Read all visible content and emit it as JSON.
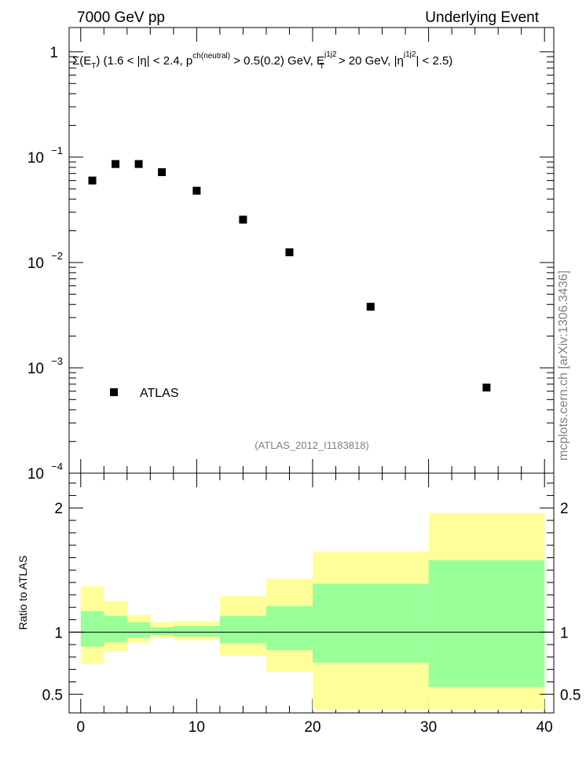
{
  "header": {
    "left": "7000 GeV pp",
    "right": "Underlying Event"
  },
  "side_label": "mcplots.cern.ch [arXiv:1306.3436]",
  "ref_label": "(ATLAS_2012_I1183818)",
  "ratio_ylabel": "Ratio to ATLAS",
  "title_parts": {
    "sigma": "Σ(E",
    "sub_T": "T",
    "mid1": ") (1.6 < |η| < 2.4, p",
    "sup_ch": "ch(neutral)",
    "mid2": " > 0.5(0.2) GeV, E",
    "sup_j1j2a": "j1j2",
    "sub_T2": "T",
    "mid3": " > 20 GeV, |η",
    "sup_j1j2b": "j1j2",
    "end": "| < 2.5)"
  },
  "chart_data": [
    {
      "type": "scatter",
      "log_y": true,
      "xlim": [
        -1,
        40.8
      ],
      "ylim": [
        0.0001,
        1.7
      ],
      "y_tick_labels": [
        {
          "base": "10",
          "exp": "−4"
        },
        {
          "base": "10",
          "exp": "−3"
        },
        {
          "base": "10",
          "exp": "−2"
        },
        {
          "base": "10",
          "exp": "−1"
        },
        {
          "base": "1",
          "exp": ""
        }
      ],
      "series": [
        {
          "name": "ATLAS",
          "color": "#000000",
          "x": [
            1,
            3,
            5,
            7,
            10,
            14,
            18,
            25,
            35
          ],
          "y": [
            0.06,
            0.086,
            0.086,
            0.072,
            0.048,
            0.0255,
            0.0125,
            0.0038,
            0.00065
          ]
        }
      ]
    },
    {
      "type": "area",
      "xlim": [
        -1,
        40.8
      ],
      "ylim": [
        0.35,
        2.28
      ],
      "y_tick_labels": [
        "0.5",
        "1",
        "2"
      ],
      "x_tick_labels": [
        "0",
        "10",
        "20",
        "30",
        "40"
      ],
      "reference_line": 1,
      "bins": [
        {
          "x0": 0,
          "x1": 2,
          "green": [
            0.885,
            1.17
          ],
          "yellow": [
            0.745,
            1.37
          ]
        },
        {
          "x0": 2,
          "x1": 4,
          "green": [
            0.92,
            1.13
          ],
          "yellow": [
            0.845,
            1.25
          ]
        },
        {
          "x0": 4,
          "x1": 6,
          "green": [
            0.955,
            1.08
          ],
          "yellow": [
            0.915,
            1.14
          ]
        },
        {
          "x0": 6,
          "x1": 8,
          "green": [
            0.975,
            1.04
          ],
          "yellow": [
            0.955,
            1.08
          ]
        },
        {
          "x0": 8,
          "x1": 12,
          "green": [
            0.965,
            1.05
          ],
          "yellow": [
            0.935,
            1.09
          ]
        },
        {
          "x0": 12,
          "x1": 16,
          "green": [
            0.91,
            1.13
          ],
          "yellow": [
            0.81,
            1.29
          ]
        },
        {
          "x0": 16,
          "x1": 20,
          "green": [
            0.855,
            1.21
          ],
          "yellow": [
            0.68,
            1.43
          ]
        },
        {
          "x0": 20,
          "x1": 30,
          "green": [
            0.755,
            1.39
          ],
          "yellow": [
            0.375,
            1.65
          ]
        },
        {
          "x0": 30,
          "x1": 40,
          "green": [
            0.56,
            1.58
          ],
          "yellow": [
            0.375,
            1.96
          ]
        }
      ],
      "colors": {
        "green": "#99ff99",
        "yellow": "#ffff99"
      }
    }
  ]
}
